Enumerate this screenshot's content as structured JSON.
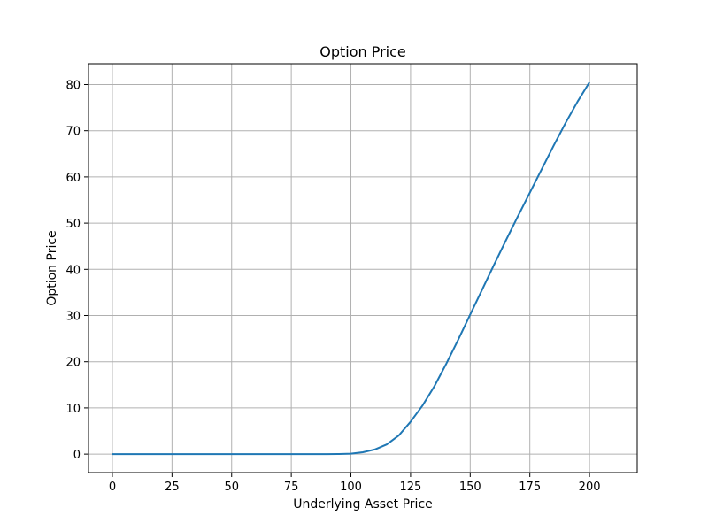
{
  "chart_data": {
    "type": "line",
    "title": "Option Price",
    "xlabel": "Underlying Asset Price",
    "ylabel": "Option Price",
    "xlim": [
      -10,
      220
    ],
    "ylim": [
      -4,
      84.5
    ],
    "xticks": [
      0,
      25,
      50,
      75,
      100,
      125,
      150,
      175,
      200
    ],
    "yticks": [
      0,
      10,
      20,
      30,
      40,
      50,
      60,
      70,
      80
    ],
    "grid": true,
    "legend": "none",
    "series": [
      {
        "color": "#1f77b4",
        "x": [
          0,
          25,
          50,
          75,
          90,
          95,
          100,
          105,
          110,
          115,
          120,
          125,
          130,
          135,
          140,
          145,
          150,
          155,
          160,
          165,
          170,
          175,
          180,
          185,
          190,
          195,
          200
        ],
        "y": [
          0,
          0,
          0,
          0,
          0,
          0.02,
          0.1,
          0.4,
          1.0,
          2.1,
          4.0,
          7.0,
          10.5,
          14.7,
          19.6,
          24.8,
          30.2,
          35.6,
          41.0,
          46.3,
          51.5,
          56.6,
          61.7,
          66.8,
          71.7,
          76.3,
          80.5
        ]
      }
    ]
  }
}
